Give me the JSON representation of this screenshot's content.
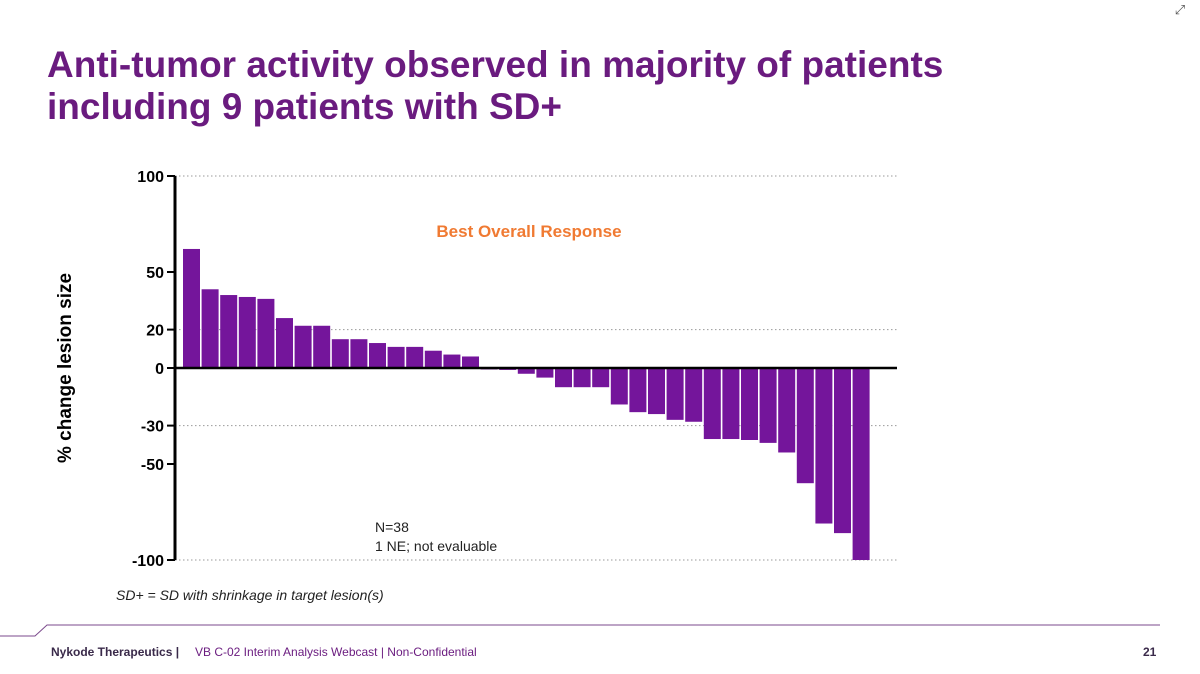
{
  "slide": {
    "title_line1": "Anti-tumor activity observed in majority of patients",
    "title_line2": "including 9 patients with SD+",
    "footnote": "SD+ = SD with shrinkage in target lesion(s)",
    "footer_company": "Nykode Therapeutics |",
    "footer_text": "VB C-02 Interim Analysis Webcast | Non-Confidential",
    "page_number": "21",
    "expand_icon": "expand-arrows-icon"
  },
  "colors": {
    "title": "#6a1b7f",
    "bar": "#74159b",
    "chart_title": "#f07a32",
    "footer_rule": "#7b4a8c"
  },
  "chart_data": {
    "type": "bar",
    "title": "Best Overall Response",
    "ylabel": "% change lesion size",
    "xlabel": "",
    "ylim": [
      -100,
      100
    ],
    "yticks": [
      100,
      50,
      20,
      0,
      -30,
      -50,
      -100
    ],
    "ytick_labels": [
      "100",
      "50",
      "20",
      "0",
      "-30",
      "-50",
      "-100"
    ],
    "gridlines": [
      100,
      20,
      -30,
      -100
    ],
    "values": [
      62,
      41,
      38,
      37,
      36,
      26,
      22,
      22,
      15,
      15,
      13,
      11,
      11,
      9,
      7,
      6,
      -0.5,
      -1,
      -3,
      -5,
      -10,
      -10,
      -10,
      -19,
      -23,
      -24,
      -27,
      -28,
      -37,
      -37,
      -37.5,
      -39,
      -44,
      -60,
      -81,
      -86,
      -100
    ],
    "annotations": [
      "N=38",
      "1 NE; not evaluable"
    ]
  }
}
